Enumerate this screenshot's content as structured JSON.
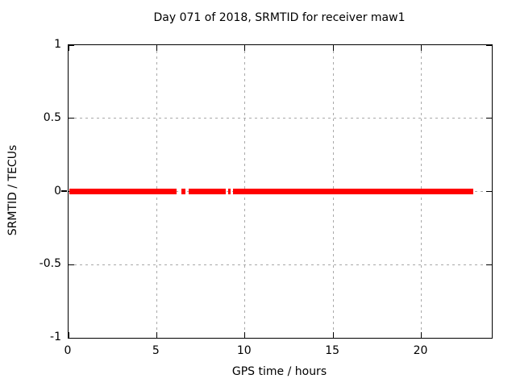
{
  "page": {
    "background": "#ffffff"
  },
  "chart_data": {
    "type": "scatter",
    "title": "Day 071 of 2018, SRMTID for receiver maw1",
    "xlabel": "GPS time / hours",
    "ylabel": "SRMTID / TECUs",
    "xlim": [
      0,
      24
    ],
    "ylim": [
      -1,
      1
    ],
    "xticks": [
      0,
      5,
      10,
      15,
      20
    ],
    "xtick_labels": [
      "0",
      "5",
      "10",
      "15",
      "20"
    ],
    "yticks": [
      1,
      0.5,
      0,
      -0.5,
      -1
    ],
    "ytick_labels": [
      "1",
      "0.5",
      "0",
      "-0.5",
      "-1"
    ],
    "grid": true,
    "legend": "none",
    "colors": {
      "series": "#ff0000",
      "grid": "#a9a9a9",
      "axis": "#000000",
      "background": "#ffffff"
    },
    "series": [
      {
        "name": "SRMTID",
        "color": "#ff0000",
        "style": "thick horizontal point-band at y=0",
        "y_value": 0,
        "band_thickness_px": 7,
        "x_segments": [
          [
            0.05,
            6.13
          ],
          [
            6.4,
            6.63
          ],
          [
            6.81,
            8.91
          ],
          [
            9.05,
            9.19
          ],
          [
            9.33,
            22.95
          ]
        ]
      }
    ]
  }
}
